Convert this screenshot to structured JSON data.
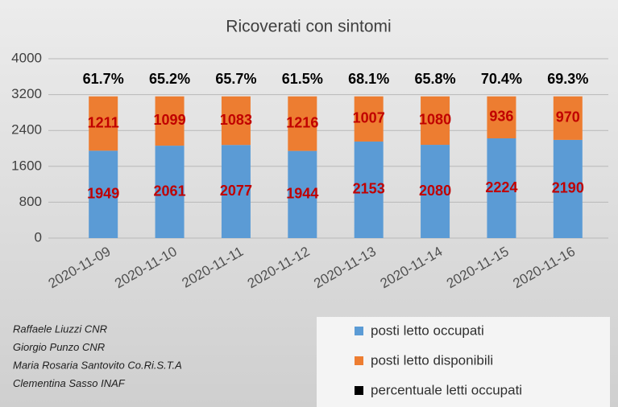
{
  "chart_data": {
    "type": "bar",
    "stacked": true,
    "title": "Ricoverati con sintomi",
    "categories": [
      "2020-11-09",
      "2020-11-10",
      "2020-11-11",
      "2020-11-12",
      "2020-11-13",
      "2020-11-14",
      "2020-11-15",
      "2020-11-16"
    ],
    "series": [
      {
        "name": "posti letto occupati",
        "color": "#5b9bd5",
        "values": [
          1949,
          2061,
          2077,
          1944,
          2153,
          2080,
          2224,
          2190
        ]
      },
      {
        "name": "posti letto disponibili",
        "color": "#ed7d31",
        "values": [
          1211,
          1099,
          1083,
          1216,
          1007,
          1080,
          936,
          970
        ]
      },
      {
        "name": "percentuale letti occupati",
        "color": "#000000",
        "values": [
          61.7,
          65.2,
          65.7,
          61.5,
          68.1,
          65.8,
          70.4,
          69.3
        ],
        "value_labels": [
          "61.7%",
          "65.2%",
          "65.7%",
          "61.5%",
          "68.1%",
          "65.8%",
          "70.4%",
          "69.3%"
        ]
      }
    ],
    "ylim": [
      0,
      4000
    ],
    "yticks": [
      0,
      800,
      1600,
      2400,
      3200,
      4000
    ],
    "grid": true,
    "notes": [
      "Raffaele Liuzzi CNR",
      "Giorgio Punzo CNR",
      "Maria Rosaria Santovito Co.Ri.S.T.A",
      "Clementina Sasso INAF"
    ]
  }
}
